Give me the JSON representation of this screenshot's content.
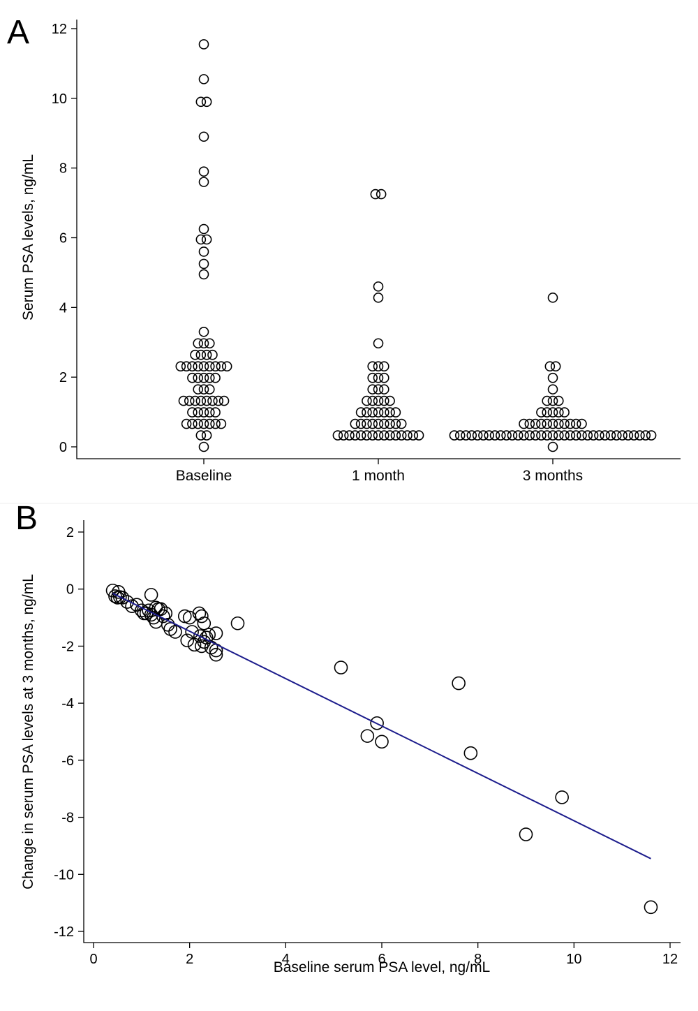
{
  "chart_data": [
    {
      "panel": "A",
      "type": "scatter",
      "subtype": "dot-plot",
      "ylabel": "Serum PSA levels, ng/mL",
      "xlabel": "",
      "ylim": [
        0,
        12
      ],
      "yticks": [
        "0",
        "2",
        "4",
        "6",
        "8",
        "10",
        "12"
      ],
      "categories": [
        "Baseline",
        "1 month",
        "3 months"
      ],
      "series": [
        {
          "category": "Baseline",
          "values": [
            11.55,
            10.55,
            9.9,
            9.9,
            8.9,
            7.9,
            7.6,
            6.25,
            5.95,
            5.95,
            5.6,
            5.25,
            4.95,
            3.3,
            2.97,
            2.97,
            2.97,
            2.64,
            2.64,
            2.64,
            2.64,
            2.31,
            2.31,
            2.31,
            2.31,
            2.31,
            2.31,
            2.31,
            2.31,
            2.31,
            1.98,
            1.98,
            1.98,
            1.98,
            1.98,
            1.65,
            1.65,
            1.65,
            1.32,
            1.32,
            1.32,
            1.32,
            1.32,
            1.32,
            1.32,
            1.32,
            0.99,
            0.99,
            0.99,
            0.99,
            0.99,
            0.66,
            0.66,
            0.66,
            0.66,
            0.66,
            0.66,
            0.66,
            0.33,
            0.33,
            0.0
          ]
        },
        {
          "category": "1 month",
          "values": [
            7.25,
            7.25,
            4.6,
            4.28,
            2.97,
            2.31,
            2.31,
            2.31,
            1.98,
            1.98,
            1.98,
            1.65,
            1.65,
            1.65,
            1.32,
            1.32,
            1.32,
            1.32,
            1.32,
            0.99,
            0.99,
            0.99,
            0.99,
            0.99,
            0.99,
            0.99,
            0.66,
            0.66,
            0.66,
            0.66,
            0.66,
            0.66,
            0.66,
            0.66,
            0.66,
            0.33,
            0.33,
            0.33,
            0.33,
            0.33,
            0.33,
            0.33,
            0.33,
            0.33,
            0.33,
            0.33,
            0.33,
            0.33,
            0.33,
            0.33
          ]
        },
        {
          "category": "3 months",
          "values": [
            4.28,
            2.31,
            2.31,
            1.98,
            1.65,
            1.32,
            1.32,
            1.32,
            0.99,
            0.99,
            0.99,
            0.99,
            0.99,
            0.66,
            0.66,
            0.66,
            0.66,
            0.66,
            0.66,
            0.66,
            0.66,
            0.66,
            0.66,
            0.66,
            0.33,
            0.33,
            0.33,
            0.33,
            0.33,
            0.33,
            0.33,
            0.33,
            0.33,
            0.33,
            0.33,
            0.33,
            0.33,
            0.33,
            0.33,
            0.33,
            0.33,
            0.33,
            0.33,
            0.33,
            0.33,
            0.33,
            0.33,
            0.33,
            0.33,
            0.33,
            0.33,
            0.33,
            0.33,
            0.33,
            0.33,
            0.33,
            0.33,
            0.33,
            0.33,
            0.0
          ]
        }
      ],
      "grid": false
    },
    {
      "panel": "B",
      "type": "scatter",
      "xlabel": "Baseline serum PSA level, ng/mL",
      "ylabel": "Change in serum PSA levels at 3 months, ng/mL",
      "xlim": [
        0,
        12
      ],
      "ylim": [
        -12,
        2
      ],
      "xticks": [
        "0",
        "2",
        "4",
        "6",
        "8",
        "10",
        "12"
      ],
      "yticks": [
        "-12",
        "-10",
        "-8",
        "-6",
        "-4",
        "-2",
        "0",
        "2"
      ],
      "points": [
        [
          0.4,
          -0.05
        ],
        [
          0.45,
          -0.25
        ],
        [
          0.5,
          -0.3
        ],
        [
          0.52,
          -0.1
        ],
        [
          0.55,
          -0.28
        ],
        [
          0.6,
          -0.3
        ],
        [
          0.7,
          -0.45
        ],
        [
          0.8,
          -0.6
        ],
        [
          0.9,
          -0.55
        ],
        [
          1.0,
          -0.75
        ],
        [
          1.05,
          -0.85
        ],
        [
          1.1,
          -0.85
        ],
        [
          1.15,
          -0.75
        ],
        [
          1.2,
          -0.9
        ],
        [
          1.25,
          -1.0
        ],
        [
          1.3,
          -1.15
        ],
        [
          1.35,
          -0.7
        ],
        [
          1.4,
          -0.7
        ],
        [
          1.45,
          -0.95
        ],
        [
          1.5,
          -0.85
        ],
        [
          1.55,
          -1.25
        ],
        [
          1.6,
          -1.4
        ],
        [
          1.7,
          -1.5
        ],
        [
          1.2,
          -0.2
        ],
        [
          1.3,
          -0.65
        ],
        [
          1.9,
          -0.95
        ],
        [
          1.95,
          -1.8
        ],
        [
          2.0,
          -1.0
        ],
        [
          2.05,
          -1.5
        ],
        [
          2.1,
          -1.95
        ],
        [
          2.2,
          -0.85
        ],
        [
          2.22,
          -1.65
        ],
        [
          2.25,
          -0.95
        ],
        [
          2.25,
          -2.0
        ],
        [
          2.3,
          -1.2
        ],
        [
          2.3,
          -1.85
        ],
        [
          2.35,
          -1.7
        ],
        [
          2.4,
          -1.6
        ],
        [
          2.45,
          -2.05
        ],
        [
          2.55,
          -2.15
        ],
        [
          2.55,
          -2.3
        ],
        [
          2.55,
          -1.55
        ],
        [
          3.0,
          -1.2
        ],
        [
          5.15,
          -2.75
        ],
        [
          5.7,
          -5.15
        ],
        [
          5.9,
          -4.7
        ],
        [
          6.0,
          -5.35
        ],
        [
          7.6,
          -3.3
        ],
        [
          7.85,
          -5.75
        ],
        [
          9.0,
          -8.6
        ],
        [
          9.75,
          -7.3
        ],
        [
          11.6,
          -11.15
        ]
      ],
      "fit_line": {
        "x": [
          0.4,
          11.6
        ],
        "y": [
          -0.15,
          -9.45
        ],
        "color": "#1c1c8c"
      },
      "grid": false
    }
  ]
}
